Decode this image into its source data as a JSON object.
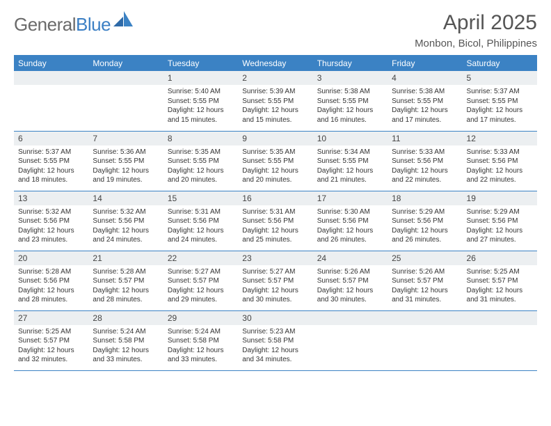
{
  "logo": {
    "text1": "General",
    "text2": "Blue"
  },
  "header": {
    "month_title": "April 2025",
    "location": "Monbon, Bicol, Philippines"
  },
  "colors": {
    "header_bg": "#3b82c4",
    "header_text": "#ffffff",
    "daynum_bg": "#eceff1",
    "row_border": "#3b82c4",
    "logo_gray": "#6a6a6a",
    "logo_blue": "#3b7fc4"
  },
  "weekdays": [
    "Sunday",
    "Monday",
    "Tuesday",
    "Wednesday",
    "Thursday",
    "Friday",
    "Saturday"
  ],
  "weeks": [
    [
      null,
      null,
      {
        "n": "1",
        "sr": "Sunrise: 5:40 AM",
        "ss": "Sunset: 5:55 PM",
        "d1": "Daylight: 12 hours",
        "d2": "and 15 minutes."
      },
      {
        "n": "2",
        "sr": "Sunrise: 5:39 AM",
        "ss": "Sunset: 5:55 PM",
        "d1": "Daylight: 12 hours",
        "d2": "and 15 minutes."
      },
      {
        "n": "3",
        "sr": "Sunrise: 5:38 AM",
        "ss": "Sunset: 5:55 PM",
        "d1": "Daylight: 12 hours",
        "d2": "and 16 minutes."
      },
      {
        "n": "4",
        "sr": "Sunrise: 5:38 AM",
        "ss": "Sunset: 5:55 PM",
        "d1": "Daylight: 12 hours",
        "d2": "and 17 minutes."
      },
      {
        "n": "5",
        "sr": "Sunrise: 5:37 AM",
        "ss": "Sunset: 5:55 PM",
        "d1": "Daylight: 12 hours",
        "d2": "and 17 minutes."
      }
    ],
    [
      {
        "n": "6",
        "sr": "Sunrise: 5:37 AM",
        "ss": "Sunset: 5:55 PM",
        "d1": "Daylight: 12 hours",
        "d2": "and 18 minutes."
      },
      {
        "n": "7",
        "sr": "Sunrise: 5:36 AM",
        "ss": "Sunset: 5:55 PM",
        "d1": "Daylight: 12 hours",
        "d2": "and 19 minutes."
      },
      {
        "n": "8",
        "sr": "Sunrise: 5:35 AM",
        "ss": "Sunset: 5:55 PM",
        "d1": "Daylight: 12 hours",
        "d2": "and 20 minutes."
      },
      {
        "n": "9",
        "sr": "Sunrise: 5:35 AM",
        "ss": "Sunset: 5:55 PM",
        "d1": "Daylight: 12 hours",
        "d2": "and 20 minutes."
      },
      {
        "n": "10",
        "sr": "Sunrise: 5:34 AM",
        "ss": "Sunset: 5:55 PM",
        "d1": "Daylight: 12 hours",
        "d2": "and 21 minutes."
      },
      {
        "n": "11",
        "sr": "Sunrise: 5:33 AM",
        "ss": "Sunset: 5:56 PM",
        "d1": "Daylight: 12 hours",
        "d2": "and 22 minutes."
      },
      {
        "n": "12",
        "sr": "Sunrise: 5:33 AM",
        "ss": "Sunset: 5:56 PM",
        "d1": "Daylight: 12 hours",
        "d2": "and 22 minutes."
      }
    ],
    [
      {
        "n": "13",
        "sr": "Sunrise: 5:32 AM",
        "ss": "Sunset: 5:56 PM",
        "d1": "Daylight: 12 hours",
        "d2": "and 23 minutes."
      },
      {
        "n": "14",
        "sr": "Sunrise: 5:32 AM",
        "ss": "Sunset: 5:56 PM",
        "d1": "Daylight: 12 hours",
        "d2": "and 24 minutes."
      },
      {
        "n": "15",
        "sr": "Sunrise: 5:31 AM",
        "ss": "Sunset: 5:56 PM",
        "d1": "Daylight: 12 hours",
        "d2": "and 24 minutes."
      },
      {
        "n": "16",
        "sr": "Sunrise: 5:31 AM",
        "ss": "Sunset: 5:56 PM",
        "d1": "Daylight: 12 hours",
        "d2": "and 25 minutes."
      },
      {
        "n": "17",
        "sr": "Sunrise: 5:30 AM",
        "ss": "Sunset: 5:56 PM",
        "d1": "Daylight: 12 hours",
        "d2": "and 26 minutes."
      },
      {
        "n": "18",
        "sr": "Sunrise: 5:29 AM",
        "ss": "Sunset: 5:56 PM",
        "d1": "Daylight: 12 hours",
        "d2": "and 26 minutes."
      },
      {
        "n": "19",
        "sr": "Sunrise: 5:29 AM",
        "ss": "Sunset: 5:56 PM",
        "d1": "Daylight: 12 hours",
        "d2": "and 27 minutes."
      }
    ],
    [
      {
        "n": "20",
        "sr": "Sunrise: 5:28 AM",
        "ss": "Sunset: 5:56 PM",
        "d1": "Daylight: 12 hours",
        "d2": "and 28 minutes."
      },
      {
        "n": "21",
        "sr": "Sunrise: 5:28 AM",
        "ss": "Sunset: 5:57 PM",
        "d1": "Daylight: 12 hours",
        "d2": "and 28 minutes."
      },
      {
        "n": "22",
        "sr": "Sunrise: 5:27 AM",
        "ss": "Sunset: 5:57 PM",
        "d1": "Daylight: 12 hours",
        "d2": "and 29 minutes."
      },
      {
        "n": "23",
        "sr": "Sunrise: 5:27 AM",
        "ss": "Sunset: 5:57 PM",
        "d1": "Daylight: 12 hours",
        "d2": "and 30 minutes."
      },
      {
        "n": "24",
        "sr": "Sunrise: 5:26 AM",
        "ss": "Sunset: 5:57 PM",
        "d1": "Daylight: 12 hours",
        "d2": "and 30 minutes."
      },
      {
        "n": "25",
        "sr": "Sunrise: 5:26 AM",
        "ss": "Sunset: 5:57 PM",
        "d1": "Daylight: 12 hours",
        "d2": "and 31 minutes."
      },
      {
        "n": "26",
        "sr": "Sunrise: 5:25 AM",
        "ss": "Sunset: 5:57 PM",
        "d1": "Daylight: 12 hours",
        "d2": "and 31 minutes."
      }
    ],
    [
      {
        "n": "27",
        "sr": "Sunrise: 5:25 AM",
        "ss": "Sunset: 5:57 PM",
        "d1": "Daylight: 12 hours",
        "d2": "and 32 minutes."
      },
      {
        "n": "28",
        "sr": "Sunrise: 5:24 AM",
        "ss": "Sunset: 5:58 PM",
        "d1": "Daylight: 12 hours",
        "d2": "and 33 minutes."
      },
      {
        "n": "29",
        "sr": "Sunrise: 5:24 AM",
        "ss": "Sunset: 5:58 PM",
        "d1": "Daylight: 12 hours",
        "d2": "and 33 minutes."
      },
      {
        "n": "30",
        "sr": "Sunrise: 5:23 AM",
        "ss": "Sunset: 5:58 PM",
        "d1": "Daylight: 12 hours",
        "d2": "and 34 minutes."
      },
      null,
      null,
      null
    ]
  ]
}
